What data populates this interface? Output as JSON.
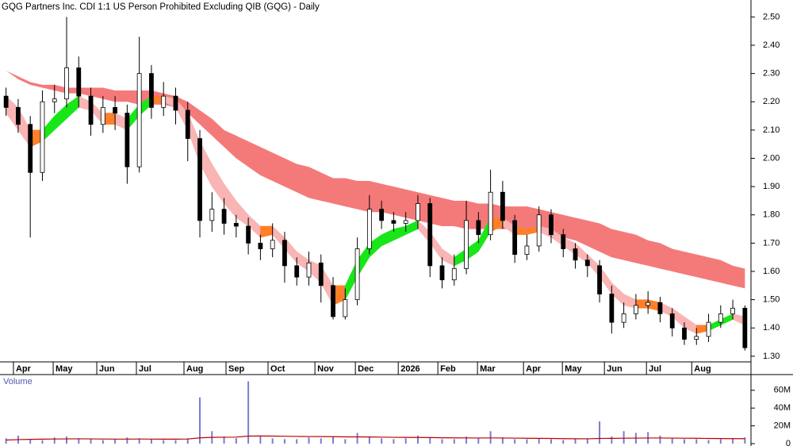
{
  "chart_data": {
    "type": "candlestick",
    "title": "GQG Partners Inc. CDI 1:1 US Person Prohibited Excluding QIB (GQG) - Daily",
    "xlim": [
      -0.5,
      61.5
    ],
    "xticks": [
      {
        "value": 0.61,
        "label": "Apr"
      },
      {
        "value": 3.89,
        "label": "May"
      },
      {
        "value": 7.49,
        "label": "Jun"
      },
      {
        "value": 10.76,
        "label": "Jul"
      },
      {
        "value": 14.69,
        "label": "Aug"
      },
      {
        "value": 18.16,
        "label": "Sep"
      },
      {
        "value": 21.63,
        "label": "Oct"
      },
      {
        "value": 25.5,
        "label": "Nov"
      },
      {
        "value": 28.84,
        "label": "Dec"
      },
      {
        "value": 32.38,
        "label": "2026"
      },
      {
        "value": 35.65,
        "label": "Feb"
      },
      {
        "value": 38.92,
        "label": "Mar"
      },
      {
        "value": 42.72,
        "label": "Apr"
      },
      {
        "value": 45.93,
        "label": "May"
      },
      {
        "value": 49.4,
        "label": "Jun"
      },
      {
        "value": 52.87,
        "label": "Jul"
      },
      {
        "value": 56.61,
        "label": "Aug"
      }
    ],
    "ylim": [
      1.28,
      2.56
    ],
    "yticks": [
      {
        "value": 2.5,
        "label": "2.50"
      },
      {
        "value": 2.4,
        "label": "2.40"
      },
      {
        "value": 2.3,
        "label": "2.30"
      },
      {
        "value": 2.2,
        "label": "2.20"
      },
      {
        "value": 2.1,
        "label": "2.10"
      },
      {
        "value": 2.0,
        "label": "2.00"
      },
      {
        "value": 1.9,
        "label": "1.90"
      },
      {
        "value": 1.8,
        "label": "1.80"
      },
      {
        "value": 1.7,
        "label": "1.70"
      },
      {
        "value": 1.6,
        "label": "1.60"
      },
      {
        "value": 1.5,
        "label": "1.50"
      },
      {
        "value": 1.4,
        "label": "1.40"
      },
      {
        "value": 1.3,
        "label": "1.30"
      }
    ],
    "open": [
      2.22,
      2.18,
      2.12,
      1.95,
      2.2,
      2.21,
      2.32,
      2.22,
      2.12,
      2.18,
      2.16,
      1.97,
      2.3,
      2.18,
      2.22,
      2.17,
      2.07,
      1.78,
      1.82,
      1.77,
      1.76,
      1.7,
      1.68,
      1.71,
      1.62,
      1.58,
      1.63,
      1.55,
      1.44,
      1.5,
      1.68,
      1.82,
      1.78,
      1.77,
      1.78,
      1.84,
      1.62,
      1.57,
      1.61,
      1.78,
      1.73,
      1.88,
      1.78,
      1.66,
      1.69,
      1.8,
      1.73,
      1.68,
      1.64,
      1.62,
      1.52,
      1.42,
      1.45,
      1.48,
      1.49,
      1.45,
      1.4,
      1.36,
      1.37,
      1.42,
      1.45,
      1.47
    ],
    "high": [
      2.25,
      2.21,
      2.15,
      2.24,
      2.26,
      2.5,
      2.36,
      2.25,
      2.22,
      2.22,
      2.19,
      2.43,
      2.33,
      2.27,
      2.25,
      2.2,
      2.1,
      1.88,
      1.86,
      1.8,
      1.79,
      1.73,
      1.77,
      1.74,
      1.65,
      1.67,
      1.66,
      1.58,
      1.54,
      1.72,
      1.87,
      1.85,
      1.81,
      1.81,
      1.87,
      1.86,
      1.65,
      1.66,
      1.85,
      1.81,
      1.96,
      1.92,
      1.8,
      1.73,
      1.83,
      1.82,
      1.75,
      1.7,
      1.66,
      1.64,
      1.55,
      1.49,
      1.52,
      1.53,
      1.51,
      1.47,
      1.42,
      1.4,
      1.45,
      1.48,
      1.5,
      1.48
    ],
    "low": [
      2.15,
      2.09,
      1.72,
      1.92,
      2.16,
      2.18,
      2.18,
      2.08,
      2.09,
      2.1,
      1.91,
      1.95,
      2.14,
      2.15,
      2.12,
      1.99,
      1.72,
      1.74,
      1.73,
      1.72,
      1.66,
      1.64,
      1.65,
      1.56,
      1.55,
      1.55,
      1.49,
      1.43,
      1.43,
      1.48,
      1.66,
      1.75,
      1.74,
      1.74,
      1.75,
      1.58,
      1.54,
      1.55,
      1.59,
      1.7,
      1.71,
      1.75,
      1.63,
      1.64,
      1.67,
      1.7,
      1.65,
      1.61,
      1.58,
      1.49,
      1.38,
      1.4,
      1.43,
      1.45,
      1.42,
      1.37,
      1.34,
      1.34,
      1.35,
      1.4,
      1.43,
      1.32
    ],
    "close": [
      2.18,
      2.12,
      1.95,
      2.2,
      2.21,
      2.32,
      2.22,
      2.12,
      2.18,
      2.16,
      1.97,
      2.3,
      2.18,
      2.22,
      2.17,
      2.07,
      1.78,
      1.82,
      1.77,
      1.76,
      1.7,
      1.68,
      1.71,
      1.62,
      1.58,
      1.63,
      1.55,
      1.44,
      1.5,
      1.68,
      1.82,
      1.78,
      1.77,
      1.78,
      1.84,
      1.62,
      1.57,
      1.61,
      1.78,
      1.73,
      1.88,
      1.78,
      1.66,
      1.69,
      1.8,
      1.73,
      1.68,
      1.64,
      1.62,
      1.52,
      1.42,
      1.45,
      1.48,
      1.49,
      1.45,
      1.4,
      1.36,
      1.37,
      1.42,
      1.45,
      1.47,
      1.33
    ],
    "up_color": "#ffffff",
    "down_color": "#000000",
    "long_band": {
      "color": "#f47a7a",
      "upper": [
        2.31,
        2.29,
        2.27,
        2.26,
        2.26,
        2.25,
        2.25,
        2.25,
        2.25,
        2.24,
        2.24,
        2.24,
        2.24,
        2.23,
        2.22,
        2.2,
        2.17,
        2.14,
        2.1,
        2.08,
        2.06,
        2.04,
        2.02,
        2.0,
        1.98,
        1.97,
        1.95,
        1.93,
        1.93,
        1.92,
        1.92,
        1.91,
        1.9,
        1.89,
        1.88,
        1.87,
        1.86,
        1.85,
        1.85,
        1.84,
        1.84,
        1.83,
        1.83,
        1.83,
        1.82,
        1.81,
        1.8,
        1.79,
        1.78,
        1.77,
        1.75,
        1.74,
        1.73,
        1.71,
        1.7,
        1.68,
        1.67,
        1.66,
        1.65,
        1.64,
        1.62,
        1.61
      ],
      "lower": [
        2.31,
        2.28,
        2.26,
        2.25,
        2.24,
        2.23,
        2.23,
        2.22,
        2.21,
        2.2,
        2.2,
        2.19,
        2.19,
        2.19,
        2.18,
        2.16,
        2.12,
        2.08,
        2.04,
        2.0,
        1.97,
        1.94,
        1.92,
        1.9,
        1.88,
        1.86,
        1.85,
        1.84,
        1.83,
        1.82,
        1.81,
        1.81,
        1.8,
        1.79,
        1.78,
        1.77,
        1.76,
        1.76,
        1.75,
        1.75,
        1.75,
        1.75,
        1.75,
        1.75,
        1.74,
        1.73,
        1.72,
        1.71,
        1.69,
        1.67,
        1.65,
        1.64,
        1.63,
        1.62,
        1.61,
        1.6,
        1.59,
        1.58,
        1.57,
        1.56,
        1.55,
        1.54
      ]
    },
    "short_band": {
      "rising_color": "#19e619",
      "falling_color": "#f9b4b4",
      "flat_color": "#ff7f2a",
      "upper": [
        2.22,
        2.18,
        2.1,
        2.1,
        2.15,
        2.19,
        2.22,
        2.2,
        2.16,
        2.16,
        2.14,
        2.19,
        2.22,
        2.22,
        2.21,
        2.16,
        2.06,
        1.98,
        1.91,
        1.85,
        1.8,
        1.76,
        1.76,
        1.72,
        1.67,
        1.64,
        1.62,
        1.55,
        1.55,
        1.64,
        1.7,
        1.73,
        1.75,
        1.76,
        1.78,
        1.74,
        1.68,
        1.65,
        1.68,
        1.71,
        1.79,
        1.79,
        1.76,
        1.75,
        1.76,
        1.75,
        1.72,
        1.7,
        1.66,
        1.62,
        1.56,
        1.52,
        1.5,
        1.5,
        1.49,
        1.47,
        1.44,
        1.41,
        1.41,
        1.43,
        1.45,
        1.44
      ],
      "lower": [
        2.16,
        2.1,
        2.04,
        2.06,
        2.1,
        2.14,
        2.18,
        2.17,
        2.12,
        2.12,
        2.1,
        2.15,
        2.19,
        2.2,
        2.18,
        2.1,
        1.98,
        1.9,
        1.84,
        1.79,
        1.76,
        1.72,
        1.73,
        1.68,
        1.63,
        1.6,
        1.56,
        1.48,
        1.5,
        1.58,
        1.65,
        1.69,
        1.71,
        1.73,
        1.75,
        1.7,
        1.64,
        1.62,
        1.64,
        1.67,
        1.74,
        1.76,
        1.73,
        1.73,
        1.74,
        1.72,
        1.69,
        1.66,
        1.63,
        1.58,
        1.52,
        1.48,
        1.47,
        1.47,
        1.46,
        1.44,
        1.4,
        1.38,
        1.39,
        1.41,
        1.43,
        1.41
      ]
    },
    "volume": {
      "label": "Volume",
      "color": "#7b7bd0",
      "average_color": "#c00000",
      "ylim": [
        0,
        75000000
      ],
      "yticks": [
        {
          "value": 60000000,
          "label": "60M"
        },
        {
          "value": 40000000,
          "label": "40M"
        },
        {
          "value": 20000000,
          "label": "20M"
        },
        0
      ],
      "values": [
        6000000,
        9000000,
        5000000,
        4000000,
        7000000,
        8000000,
        6000000,
        5000000,
        4000000,
        5000000,
        7000000,
        6000000,
        5000000,
        4000000,
        4000000,
        6000000,
        52000000,
        14000000,
        8000000,
        6000000,
        70000000,
        9000000,
        6000000,
        5000000,
        5000000,
        7000000,
        6000000,
        8000000,
        5000000,
        12000000,
        8000000,
        6000000,
        5000000,
        6000000,
        9000000,
        7000000,
        5000000,
        5000000,
        8000000,
        6000000,
        14000000,
        7000000,
        5000000,
        5000000,
        6000000,
        5000000,
        4000000,
        5000000,
        6000000,
        25000000,
        8000000,
        14000000,
        12000000,
        13000000,
        9000000,
        6000000,
        5000000,
        5000000,
        4000000,
        5000000,
        6000000,
        7000000
      ],
      "average": [
        4000000,
        4500000,
        4800000,
        5000000,
        5200000,
        5300000,
        5400000,
        5300000,
        5200000,
        5100000,
        5100000,
        5200000,
        5100000,
        5000000,
        5000000,
        5200000,
        6500000,
        7000000,
        7200000,
        7300000,
        8500000,
        8600000,
        8500000,
        8300000,
        8100000,
        8000000,
        7900000,
        7800000,
        7600000,
        7600000,
        7500000,
        7300000,
        7100000,
        7000000,
        6900000,
        6800000,
        6600000,
        6500000,
        6400000,
        6300000,
        6400000,
        6300000,
        6200000,
        6000000,
        5900000,
        5800000,
        5600000,
        5500000,
        5400000,
        5800000,
        5900000,
        6100000,
        6200000,
        6300000,
        6300000,
        6200000,
        6100000,
        6000000,
        5800000,
        5700000,
        5600000,
        5600000
      ]
    }
  }
}
